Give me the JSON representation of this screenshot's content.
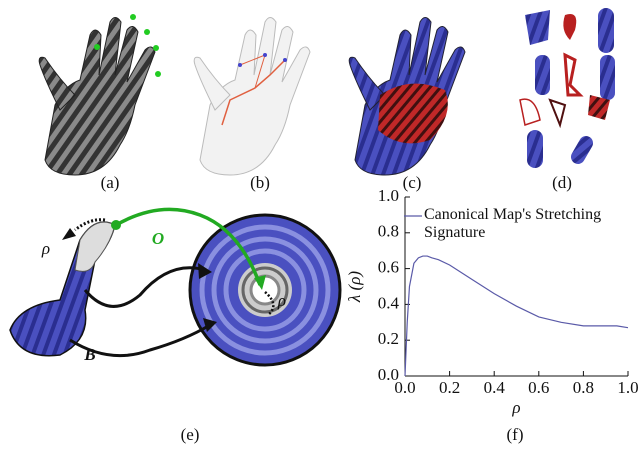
{
  "panels": {
    "labels": [
      "(a)",
      "(b)",
      "(c)",
      "(d)",
      "(e)",
      "(f)"
    ]
  },
  "diagram": {
    "labels": [
      "ρ",
      "O",
      "ρ",
      "B"
    ]
  },
  "chart_data": {
    "type": "line",
    "x": [
      0,
      0.01,
      0.02,
      0.04,
      0.06,
      0.08,
      0.1,
      0.12,
      0.15,
      0.2,
      0.3,
      0.4,
      0.5,
      0.6,
      0.7,
      0.8,
      0.9,
      0.95,
      1.0
    ],
    "series": [
      {
        "name": "Canonical Map's Stretching Signature",
        "color": "#5a5aa8",
        "values": [
          0,
          0.3,
          0.5,
          0.63,
          0.66,
          0.67,
          0.67,
          0.66,
          0.65,
          0.62,
          0.54,
          0.46,
          0.39,
          0.33,
          0.3,
          0.28,
          0.28,
          0.28,
          0.27
        ]
      }
    ],
    "xlabel": "ρ",
    "ylabel": "λ (ρ)",
    "xlim": [
      0,
      1
    ],
    "ylim": [
      0,
      1
    ],
    "xticks": [
      {
        "value": 0,
        "label": "0.0"
      },
      0.2,
      0.4,
      0.6,
      0.8,
      {
        "value": 1,
        "label": "1.0"
      }
    ],
    "yticks": [
      {
        "value": 0,
        "label": "0.0"
      },
      0.2,
      0.4,
      0.6,
      0.8,
      {
        "value": 1,
        "label": "1.0"
      }
    ],
    "legend": "upper left"
  }
}
